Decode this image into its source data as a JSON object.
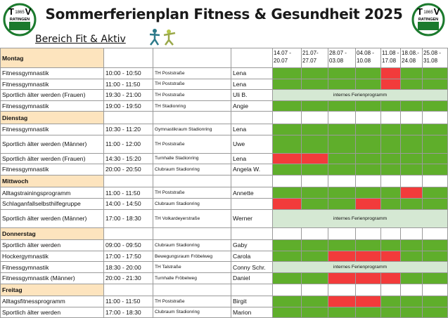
{
  "header": {
    "title": "Sommerferienplan Fitness & Gesundheit 2025",
    "subtitle": "Bereich Fit & Aktiv",
    "logo": {
      "left_letter": "T",
      "right_letter": "V",
      "year": "1865",
      "city": "RATINGEN"
    }
  },
  "table": {
    "weeks": [
      [
        "14.07 -",
        "20.07"
      ],
      [
        "21.07-",
        "27.07"
      ],
      [
        "28.07 -",
        "03.08"
      ],
      [
        "04.08 -",
        "10.08"
      ],
      [
        "11.08 -",
        "17.08"
      ],
      [
        "18.08.-",
        "24.08"
      ],
      [
        "25.08 -",
        "31.08"
      ]
    ],
    "colors": {
      "open": "#5fae2b",
      "closed": "#f23b3b",
      "internal": "#d5e8d3",
      "day": "#fde4be"
    },
    "rows": [
      {
        "day": "Montag"
      },
      {
        "course": "Fitnessgymnastik",
        "time": "10:00 - 10:50",
        "place": "TH Poststraße",
        "trainer": "Lena",
        "weeks": [
          "open",
          "open",
          "open",
          "open",
          "closed",
          "open",
          "open"
        ]
      },
      {
        "course": "Fitnessgymnastik",
        "time": "11:00 - 11:50",
        "place": "TH Poststraße",
        "trainer": "Lena",
        "weeks": [
          "open",
          "open",
          "open",
          "open",
          "closed",
          "open",
          "open"
        ]
      },
      {
        "course": "Sportlich älter werden (Frauen)",
        "time": "19:30 - 21:00",
        "place": "TH Poststraße",
        "trainer": "Uli B.",
        "note": "internes Ferienprogramm"
      },
      {
        "course": "Fitnessgymnastik",
        "time": "19:00 - 19:50",
        "place": "TH Stadionring",
        "trainer": "Angie",
        "weeks": [
          "open",
          "open",
          "open",
          "open",
          "open",
          "open",
          "open"
        ]
      },
      {
        "day": "Dienstag"
      },
      {
        "course": "Fitnessgymnastik",
        "time": "10:30 - 11:20",
        "place": "Gymnastikraum Stadionring",
        "trainer": "Lena",
        "weeks": [
          "open",
          "open",
          "open",
          "open",
          "open",
          "open",
          "open"
        ]
      },
      {
        "course": "Sportlich älter werden (Männer)",
        "time": "11:00 - 12:00",
        "place": "TH Poststraße",
        "trainer": "Uwe",
        "weeks": [
          "open",
          "open",
          "open",
          "open",
          "open",
          "open",
          "open"
        ]
      },
      {
        "course": "Sportlich älter werden (Frauen)",
        "time": "14:30 - 15:20",
        "place": "Turnhalle Stadionring",
        "trainer": "Lena",
        "weeks": [
          "closed",
          "closed",
          "open",
          "open",
          "open",
          "open",
          "open"
        ]
      },
      {
        "course": "Fitnessgymnastik",
        "time": "20:00 - 20:50",
        "place": "Clubraum Stadionring",
        "trainer": "Angela W.",
        "weeks": [
          "open",
          "open",
          "open",
          "open",
          "open",
          "open",
          "open"
        ]
      },
      {
        "day": "Mittwoch"
      },
      {
        "course": "Alltagstrainingsprogramm",
        "time": "11:00 - 11:50",
        "place": "TH Poststraße",
        "trainer": "Annette",
        "weeks": [
          "open",
          "open",
          "open",
          "open",
          "open",
          "closed",
          "open"
        ]
      },
      {
        "course": "Schlaganfallselbsthilfegruppe",
        "time": "14:00 - 14:50",
        "place": "Clubraum Stadionring",
        "weeks": [
          "closed",
          "open",
          "open",
          "closed",
          "open",
          "open",
          "open"
        ]
      },
      {
        "course": "Sportlich älter werden (Männer)",
        "time": "17:00 - 18:30",
        "place": "TH Volkardeyerstraße",
        "trainer": "Werner",
        "note": "internes Ferienprogramm"
      },
      {
        "day": "Donnerstag"
      },
      {
        "course": "Sportlich älter werden",
        "time": "09:00 - 09:50",
        "place": "Clubraum Stadionring",
        "trainer": "Gaby",
        "weeks": [
          "open",
          "open",
          "open",
          "open",
          "open",
          "open",
          "open"
        ]
      },
      {
        "course": "Hockergymnastik",
        "time": "17:00 - 17:50",
        "place": "Bewegungsraum Fröbelweg",
        "trainer": "Carola",
        "weeks": [
          "open",
          "open",
          "closed",
          "closed",
          "closed",
          "open",
          "open"
        ]
      },
      {
        "course": "Fitnessgymnastik",
        "time": "18:30 - 20:00",
        "place": "TH Talstraße",
        "trainer": "Conny Schr.",
        "note": "internes Ferienprogramm"
      },
      {
        "course": "Fitnessgymnastik (Männer)",
        "time": "20:00 - 21:30",
        "place": "Turnhalle Fröbelweg",
        "trainer": "Daniel",
        "weeks": [
          "open",
          "open",
          "closed",
          "closed",
          "closed",
          "open",
          "open"
        ]
      },
      {
        "day": "Freitag"
      },
      {
        "course": "Alltagsfitnessprogramm",
        "time": "11:00 - 11:50",
        "place": "TH Poststraße",
        "trainer": "Birgit",
        "weeks": [
          "open",
          "open",
          "closed",
          "closed",
          "open",
          "open",
          "open"
        ]
      },
      {
        "course": "Sportlich älter werden",
        "time": "17:00 - 18:30",
        "place": "Clubraum Stadionring",
        "trainer": "Marion",
        "weeks": [
          "open",
          "open",
          "open",
          "open",
          "open",
          "open",
          "open"
        ]
      }
    ]
  }
}
